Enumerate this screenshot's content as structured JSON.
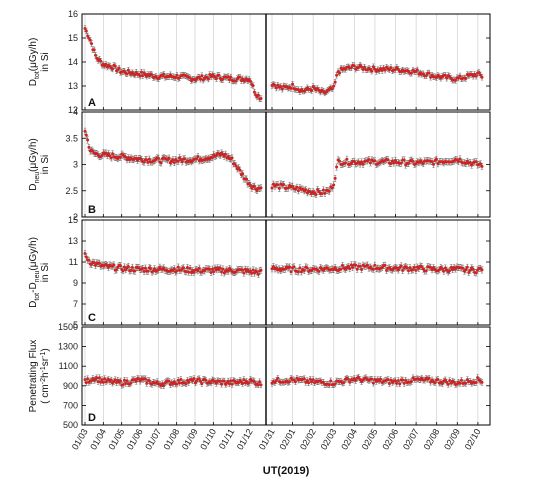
{
  "chart_data": {
    "type": "scatter",
    "xlabel": "UT(2019)",
    "x_tick_labels": [
      "01/03",
      "01/04",
      "01/05",
      "01/06",
      "01/07",
      "01/08",
      "01/09",
      "01/10",
      "01/11",
      "01/12",
      "01/31",
      "02/01",
      "02/02",
      "02/03",
      "02/04",
      "02/05",
      "02/06",
      "02/07",
      "02/08",
      "02/09",
      "02/10"
    ],
    "colors": {
      "points": "#d42020",
      "errorbars": "#6a6a6a",
      "axes": "#000000",
      "gridlines": "#cfcfcf"
    },
    "grid": "vertical",
    "panels": [
      {
        "label": "A",
        "ylabel": [
          "D",
          "tot",
          "(μGy/h)",
          "in Si"
        ],
        "ylim": [
          12,
          16
        ],
        "yticks": [
          "12",
          "13",
          "14",
          "15",
          "16"
        ],
        "segments": [
          {
            "x": [
              0,
              0.3,
              0.6,
              1,
              1.5,
              2,
              3,
              4,
              5,
              6,
              7,
              8,
              8.6,
              9,
              9.3,
              9.6
            ],
            "y": [
              15.4,
              14.9,
              14.2,
              13.9,
              13.8,
              13.6,
              13.5,
              13.4,
              13.4,
              13.3,
              13.4,
              13.3,
              13.3,
              13.3,
              12.7,
              12.5
            ]
          },
          {
            "x": [
              10,
              10.5,
              11,
              11.5,
              12,
              12.5,
              13,
              13.2,
              13.5,
              14,
              15,
              16,
              17,
              17.5,
              18,
              19,
              20,
              20.2
            ],
            "y": [
              13.1,
              12.9,
              13.0,
              12.8,
              12.9,
              12.7,
              12.9,
              13.6,
              13.7,
              13.8,
              13.7,
              13.7,
              13.6,
              13.5,
              13.4,
              13.3,
              13.5,
              13.4
            ]
          }
        ]
      },
      {
        "label": "B",
        "ylabel": [
          "D",
          "neu",
          "(μGy/h)",
          "in Si"
        ],
        "ylim": [
          2,
          4
        ],
        "yticks": [
          "2",
          "2.5",
          "3",
          "3.5",
          "4"
        ],
        "segments": [
          {
            "x": [
              0,
              0.3,
              0.6,
              1,
              2,
              3,
              4,
              5,
              6,
              7,
              7.5,
              8,
              8.5,
              8.8,
              9.1,
              9.3,
              9.6
            ],
            "y": [
              3.65,
              3.25,
              3.2,
              3.18,
              3.15,
              3.1,
              3.08,
              3.08,
              3.1,
              3.15,
              3.2,
              3.1,
              2.85,
              2.7,
              2.6,
              2.55,
              2.55
            ]
          },
          {
            "x": [
              10,
              10.5,
              11,
              11.5,
              12,
              12.5,
              12.8,
              13,
              13.2,
              14,
              15,
              16,
              17,
              18,
              19,
              19.5,
              20,
              20.2
            ],
            "y": [
              2.6,
              2.58,
              2.55,
              2.52,
              2.48,
              2.47,
              2.5,
              2.65,
              3.05,
              3.05,
              3.05,
              3.05,
              3.03,
              3.05,
              3.1,
              3.05,
              3.0,
              3.0
            ]
          }
        ]
      },
      {
        "label": "C",
        "ylabel": [
          "D",
          "tot",
          "-D",
          "neu",
          "(μGy/h)",
          "in Si"
        ],
        "ylim": [
          5,
          15
        ],
        "yticks": [
          "5",
          "7",
          "9",
          "11",
          "13",
          "15"
        ],
        "segments": [
          {
            "x": [
              0,
              0.3,
              0.6,
              1,
              2,
              3,
              4,
              5,
              6,
              7,
              8,
              9,
              9.6
            ],
            "y": [
              11.6,
              11.0,
              10.8,
              10.6,
              10.4,
              10.3,
              10.3,
              10.3,
              10.2,
              10.2,
              10.2,
              10.1,
              10.0
            ]
          },
          {
            "x": [
              10,
              11,
              12,
              13,
              14,
              15,
              16,
              17,
              18,
              19,
              20,
              20.2
            ],
            "y": [
              10.4,
              10.3,
              10.3,
              10.4,
              10.5,
              10.5,
              10.4,
              10.4,
              10.3,
              10.3,
              10.2,
              10.4
            ]
          }
        ]
      },
      {
        "label": "D",
        "ylabel": [
          "Penetrating Flux",
          "( cm",
          "-2",
          "h",
          "-1",
          "sr",
          "-1",
          ")"
        ],
        "ylim": [
          500,
          1500
        ],
        "yticks": [
          "500",
          "700",
          "900",
          "1100",
          "1300",
          "1500"
        ],
        "segments": [
          {
            "x": [
              0,
              0.5,
              1,
              2,
              3,
              4,
              5,
              6,
              7,
              8,
              9,
              9.6
            ],
            "y": [
              940,
              980,
              950,
              930,
              960,
              920,
              940,
              950,
              940,
              930,
              950,
              920
            ]
          },
          {
            "x": [
              10,
              11,
              12,
              13,
              14,
              15,
              16,
              17,
              18,
              19,
              20,
              20.2
            ],
            "y": [
              950,
              960,
              940,
              930,
              970,
              950,
              940,
              960,
              950,
              930,
              960,
              950
            ]
          }
        ]
      }
    ]
  }
}
